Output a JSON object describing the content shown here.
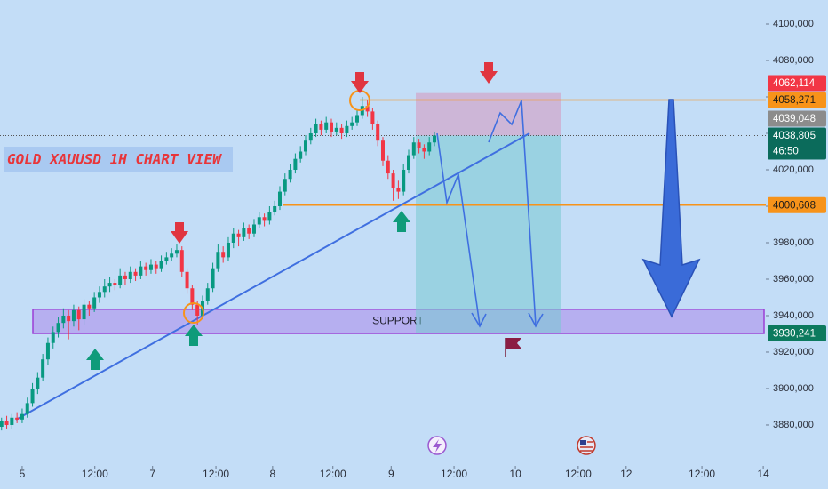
{
  "chart_data": {
    "type": "candlestick",
    "title": "GOLD XAUUSD 1H CHART VIEW",
    "x": [
      -4,
      -3,
      -2,
      -1,
      0,
      1,
      2,
      3,
      4,
      5,
      6,
      7,
      8,
      9,
      10,
      11,
      12,
      13,
      14,
      15,
      16,
      17,
      18,
      19,
      20,
      21,
      22,
      23,
      24,
      25,
      26,
      27,
      28,
      29,
      30,
      31,
      32,
      33,
      34,
      35,
      36,
      37,
      38,
      39,
      40,
      41,
      42,
      43,
      44,
      45,
      46,
      47,
      48,
      49,
      50,
      51,
      52,
      53,
      54,
      55,
      56,
      57,
      58,
      59,
      60,
      61,
      62,
      63,
      64,
      65,
      66,
      67,
      68,
      69,
      70,
      71,
      72,
      73,
      74,
      75,
      76,
      77,
      78,
      79,
      80
    ],
    "candles": [
      [
        3879,
        3884,
        3877,
        3882
      ],
      [
        3882,
        3885,
        3878,
        3880
      ],
      [
        3880,
        3886,
        3878,
        3884
      ],
      [
        3884,
        3887,
        3881,
        3883
      ],
      [
        3883,
        3889,
        3881,
        3886
      ],
      [
        3886,
        3895,
        3884,
        3892
      ],
      [
        3892,
        3903,
        3890,
        3900
      ],
      [
        3900,
        3909,
        3897,
        3906
      ],
      [
        3906,
        3919,
        3904,
        3916
      ],
      [
        3916,
        3928,
        3913,
        3925
      ],
      [
        3925,
        3934,
        3922,
        3931
      ],
      [
        3931,
        3939,
        3928,
        3936
      ],
      [
        3936,
        3944,
        3933,
        3940
      ],
      [
        3940,
        3943,
        3927,
        3937
      ],
      [
        3937,
        3946,
        3934,
        3943
      ],
      [
        3943,
        3945,
        3932,
        3938
      ],
      [
        3938,
        3949,
        3935,
        3946
      ],
      [
        3946,
        3948,
        3940,
        3944
      ],
      [
        3944,
        3953,
        3942,
        3950
      ],
      [
        3950,
        3956,
        3947,
        3953
      ],
      [
        3953,
        3960,
        3950,
        3956
      ],
      [
        3956,
        3961,
        3953,
        3958
      ],
      [
        3958,
        3960,
        3954,
        3957
      ],
      [
        3957,
        3966,
        3955,
        3962
      ],
      [
        3962,
        3964,
        3957,
        3960
      ],
      [
        3960,
        3967,
        3958,
        3964
      ],
      [
        3964,
        3966,
        3959,
        3962
      ],
      [
        3962,
        3970,
        3960,
        3967
      ],
      [
        3967,
        3969,
        3962,
        3965
      ],
      [
        3965,
        3971,
        3963,
        3968
      ],
      [
        3968,
        3970,
        3963,
        3966
      ],
      [
        3966,
        3973,
        3964,
        3970
      ],
      [
        3970,
        3975,
        3968,
        3972
      ],
      [
        3972,
        3977,
        3970,
        3974
      ],
      [
        3974,
        3979,
        3972,
        3976
      ],
      [
        3976,
        3978,
        3961,
        3964
      ],
      [
        3964,
        3966,
        3952,
        3955
      ],
      [
        3955,
        3957,
        3943,
        3946
      ],
      [
        3946,
        3948,
        3935,
        3940
      ],
      [
        3940,
        3951,
        3938,
        3948
      ],
      [
        3948,
        3958,
        3946,
        3955
      ],
      [
        3955,
        3969,
        3953,
        3966
      ],
      [
        3966,
        3979,
        3964,
        3975
      ],
      [
        3975,
        3978,
        3969,
        3972
      ],
      [
        3972,
        3983,
        3970,
        3980
      ],
      [
        3980,
        3988,
        3977,
        3985
      ],
      [
        3985,
        3987,
        3978,
        3983
      ],
      [
        3983,
        3991,
        3981,
        3988
      ],
      [
        3988,
        3990,
        3982,
        3985
      ],
      [
        3985,
        3993,
        3983,
        3990
      ],
      [
        3990,
        3997,
        3988,
        3994
      ],
      [
        3994,
        3996,
        3989,
        3992
      ],
      [
        3992,
        4000,
        3990,
        3997
      ],
      [
        3997,
        4003,
        3995,
        4000
      ],
      [
        4000,
        4011,
        3998,
        4008
      ],
      [
        4008,
        4018,
        4006,
        4015
      ],
      [
        4015,
        4023,
        4013,
        4020
      ],
      [
        4020,
        4029,
        4018,
        4026
      ],
      [
        4026,
        4033,
        4024,
        4030
      ],
      [
        4030,
        4039,
        4028,
        4036
      ],
      [
        4036,
        4043,
        4034,
        4040
      ],
      [
        4040,
        4048,
        4038,
        4045
      ],
      [
        4045,
        4047,
        4039,
        4042
      ],
      [
        4042,
        4049,
        4040,
        4046
      ],
      [
        4046,
        4048,
        4038,
        4041
      ],
      [
        4041,
        4046,
        4039,
        4043
      ],
      [
        4043,
        4045,
        4037,
        4040
      ],
      [
        4040,
        4047,
        4038,
        4044
      ],
      [
        4044,
        4049,
        4042,
        4046
      ],
      [
        4046,
        4053,
        4044,
        4050
      ],
      [
        4050,
        4060,
        4048,
        4055
      ],
      [
        4055,
        4058,
        4049,
        4052
      ],
      [
        4052,
        4054,
        4042,
        4045
      ],
      [
        4045,
        4047,
        4033,
        4036
      ],
      [
        4036,
        4038,
        4022,
        4025
      ],
      [
        4025,
        4028,
        4015,
        4018
      ],
      [
        4018,
        4020,
        4003,
        4010
      ],
      [
        4010,
        4014,
        4004,
        4008
      ],
      [
        4008,
        4023,
        4006,
        4020
      ],
      [
        4020,
        4031,
        4018,
        4028
      ],
      [
        4028,
        4038,
        4026,
        4035
      ],
      [
        4035,
        4037,
        4029,
        4032
      ],
      [
        4032,
        4034,
        4026,
        4030
      ],
      [
        4030,
        4038,
        4028,
        4035
      ],
      [
        4035,
        4041,
        4033,
        4038.805
      ]
    ],
    "up_color": "#089981",
    "down_color": "#f23645",
    "xlim": [
      -4.3,
      144.3
    ],
    "xticks": [
      {
        "value": 0,
        "label": "5"
      },
      {
        "value": 14.1,
        "label": "12:00"
      },
      {
        "value": 25.3,
        "label": "7"
      },
      {
        "value": 37.6,
        "label": "12:00"
      },
      {
        "value": 48.6,
        "label": "8"
      },
      {
        "value": 60.3,
        "label": "12:00"
      },
      {
        "value": 71.6,
        "label": "9"
      },
      {
        "value": 83.8,
        "label": "12:00"
      },
      {
        "value": 95.7,
        "label": "10"
      },
      {
        "value": 107.9,
        "label": "12:00"
      },
      {
        "value": 117.2,
        "label": "12"
      },
      {
        "value": 131.9,
        "label": "12:00"
      },
      {
        "value": 143.8,
        "label": "14"
      }
    ],
    "ylim": [
      3859.5,
      4113.17
    ],
    "yticks": [
      {
        "value": 3880,
        "label": "3880,000"
      },
      {
        "value": 3900,
        "label": "3900,000"
      },
      {
        "value": 3920,
        "label": "3920,000"
      },
      {
        "value": 3940,
        "label": "3940,000"
      },
      {
        "value": 3960,
        "label": "3960,000"
      },
      {
        "value": 3980,
        "label": "3980,000"
      },
      {
        "value": 4000,
        "label": "4000,000"
      },
      {
        "value": 4020,
        "label": "4020,000"
      },
      {
        "value": 4040,
        "label": "4040,000"
      },
      {
        "value": 4060,
        "label": "4060,000"
      },
      {
        "value": 4080,
        "label": "4080,000"
      },
      {
        "value": 4100,
        "label": "4100,000"
      }
    ],
    "grid": false,
    "price_tags": [
      {
        "value": 4062.114,
        "label": "4062,114",
        "color": "#f23645",
        "text_color": "#ffffff"
      },
      {
        "value": 4058.271,
        "label": "4058,271",
        "color": "#f7931a",
        "text_color": "#1a1a1a"
      },
      {
        "value": 4039.048,
        "label": "4039,048",
        "color": "#8c8c8c",
        "text_color": "#ffffff"
      },
      {
        "value": 4038.805,
        "label": "4038,805",
        "countdown": "46:50",
        "color": "#0b6b5b",
        "text_color": "#ffffff"
      },
      {
        "value": 4000.608,
        "label": "4000,608",
        "color": "#f7931a",
        "text_color": "#1a1a1a"
      },
      {
        "value": 3930.241,
        "label": "3930,241",
        "color": "#0c7a5e",
        "text_color": "#ffffff"
      }
    ],
    "zones": [
      {
        "label": "SUPPORT",
        "low": 3930.241,
        "high": 3943.5
      }
    ]
  }
}
